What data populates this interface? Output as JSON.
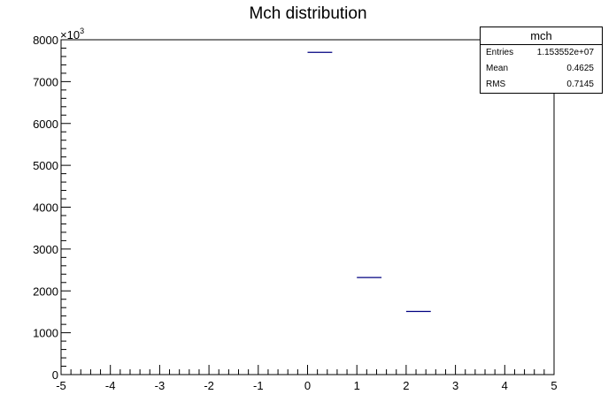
{
  "chart_data": {
    "type": "bar",
    "title": "Mch distribution",
    "xlabel": "",
    "ylabel": "",
    "xlim": [
      -5,
      5
    ],
    "ylim": [
      0,
      8000
    ],
    "y_multiplier_label": "×10",
    "y_multiplier_exponent": "3",
    "x_ticks": [
      "-5",
      "-4",
      "-3",
      "-2",
      "-1",
      "0",
      "1",
      "2",
      "3",
      "4",
      "5"
    ],
    "y_ticks": [
      "0",
      "1000",
      "2000",
      "3000",
      "4000",
      "5000",
      "6000",
      "7000",
      "8000"
    ],
    "bins": [
      {
        "x0": 0,
        "x1": 0.5,
        "value": 7700
      },
      {
        "x0": 1,
        "x1": 1.5,
        "value": 2320
      },
      {
        "x0": 2,
        "x1": 2.5,
        "value": 1510
      }
    ],
    "grid": false,
    "colors": {
      "line": "#000080",
      "axis": "#000000"
    }
  },
  "stats_box": {
    "name": "mch",
    "rows": [
      {
        "label": "Entries",
        "value": "1.153552e+07"
      },
      {
        "label": "Mean",
        "value": "0.4625"
      },
      {
        "label": "RMS",
        "value": "0.7145"
      }
    ]
  }
}
